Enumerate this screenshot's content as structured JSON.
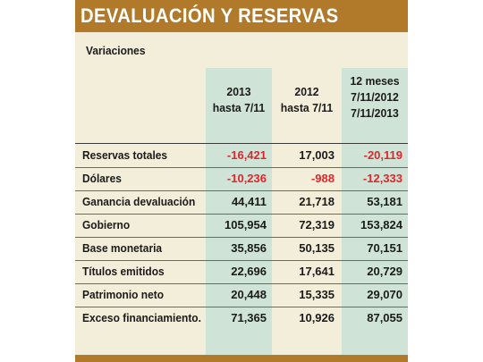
{
  "title": "DEVALUACIÓN Y RESERVAS",
  "subtitle": "Variaciones",
  "columns": [
    {
      "line1": "2013",
      "line2": "hasta 7/11",
      "line3": ""
    },
    {
      "line1": "2012",
      "line2": "hasta 7/11",
      "line3": ""
    },
    {
      "line1": "12 meses",
      "line2": "7/11/2012",
      "line3": "7/11/2013"
    }
  ],
  "rows": [
    {
      "label": "Reservas totales",
      "values": [
        "-16,421",
        "17,003",
        "-20,119"
      ],
      "negative": [
        true,
        false,
        true
      ]
    },
    {
      "label": "Dólares",
      "values": [
        "-10,236",
        "-988",
        "-12,333"
      ],
      "negative": [
        true,
        true,
        true
      ]
    },
    {
      "label": "Ganancia devaluación",
      "values": [
        "44,411",
        "21,718",
        "53,181"
      ],
      "negative": [
        false,
        false,
        false
      ]
    },
    {
      "label": "Gobierno",
      "values": [
        "105,954",
        "72,319",
        "153,824"
      ],
      "negative": [
        false,
        false,
        false
      ]
    },
    {
      "label": "Base monetaria",
      "values": [
        "35,856",
        "50,135",
        "70,151"
      ],
      "negative": [
        false,
        false,
        false
      ]
    },
    {
      "label": "Títulos emitidos",
      "values": [
        "22,696",
        "17,641",
        "20,729"
      ],
      "negative": [
        false,
        false,
        false
      ]
    },
    {
      "label": "Patrimonio neto",
      "values": [
        "20,448",
        "15,335",
        "29,070"
      ],
      "negative": [
        false,
        false,
        false
      ]
    },
    {
      "label": "Exceso financiamiento.",
      "values": [
        "71,365",
        "10,926",
        "87,055"
      ],
      "negative": [
        false,
        false,
        false
      ]
    }
  ],
  "colors": {
    "banner": "#b07a2a",
    "background": "#f3eeda",
    "column_shade": "#cfe3d7",
    "negative": "#e0262b"
  }
}
